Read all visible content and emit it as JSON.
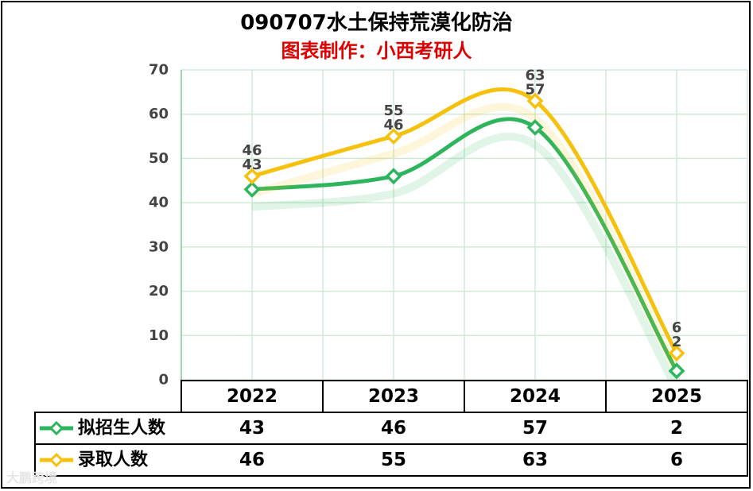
{
  "chart_data": {
    "type": "line",
    "title": "090707水土保持荒漠化防治",
    "subtitle": "图表制作：小西考研人",
    "categories": [
      "2022",
      "2023",
      "2024",
      "2025"
    ],
    "series": [
      {
        "name": "拟招生人数",
        "values": [
          43,
          46,
          57,
          2
        ],
        "color": "#2db55d"
      },
      {
        "name": "录取人数",
        "values": [
          46,
          55,
          63,
          6
        ],
        "color": "#f6c10c"
      }
    ],
    "ylim": [
      0,
      70
    ],
    "yticks": [
      0,
      10,
      20,
      30,
      40,
      50,
      60,
      70
    ],
    "grid": true,
    "data_table": true
  },
  "watermark": "大鹏跨境"
}
